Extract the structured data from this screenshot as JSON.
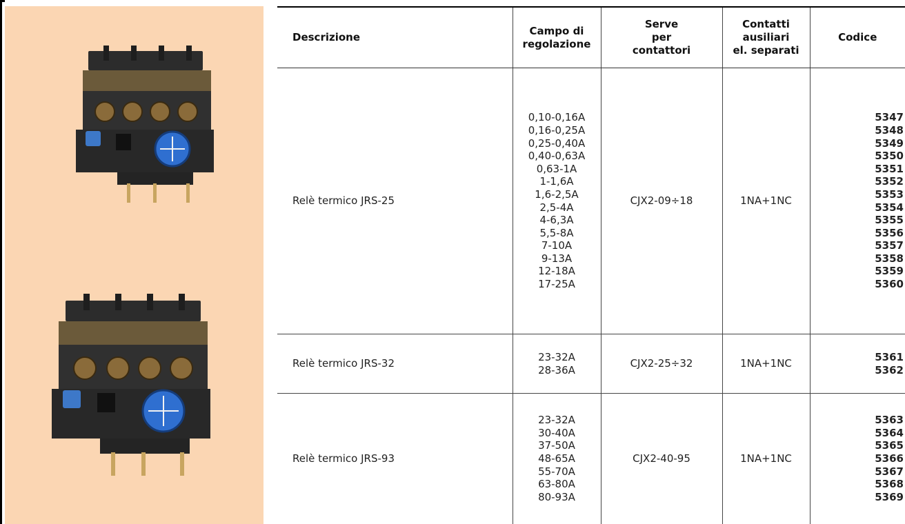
{
  "colors": {
    "panel": "#fbd6b3",
    "rule": "#000000",
    "relay_body": "#2b2b2b",
    "dial": "#2f6fd0"
  },
  "images": [
    {
      "name": "relay-jrs-25-photo",
      "icon": "thermal-relay-icon"
    },
    {
      "name": "relay-jrs-93-photo",
      "icon": "thermal-relay-icon"
    }
  ],
  "table": {
    "headers": {
      "descrizione": "Descrizione",
      "campo": "Campo di\nregolazione",
      "serve": "Serve\nper\ncontattori",
      "contatti": "Contatti\nausiliari\nel. separati",
      "codice": "Codice"
    },
    "rows": [
      {
        "descrizione": "Relè termico JRS-25",
        "campo": [
          "0,10-0,16A",
          "0,16-0,25A",
          "0,25-0,40A",
          "0,40-0,63A",
          "0,63-1A",
          "1-1,6A",
          "1,6-2,5A",
          "2,5-4A",
          "4-6,3A",
          "5,5-8A",
          "7-10A",
          "9-13A",
          "12-18A",
          "17-25A"
        ],
        "serve": "CJX2-09÷18",
        "contatti": "1NA+1NC",
        "codici": [
          "5347",
          "5348",
          "5349",
          "5350",
          "5351",
          "5352",
          "5353",
          "5354",
          "5355",
          "5356",
          "5357",
          "5358",
          "5359",
          "5360"
        ]
      },
      {
        "descrizione": "Relè termico JRS-32",
        "campo": [
          "23-32A",
          "28-36A"
        ],
        "serve": "CJX2-25÷32",
        "contatti": "1NA+1NC",
        "codici": [
          "5361",
          "5362"
        ]
      },
      {
        "descrizione": "Relè termico JRS-93",
        "campo": [
          "23-32A",
          "30-40A",
          "37-50A",
          "48-65A",
          "55-70A",
          "63-80A",
          "80-93A"
        ],
        "serve": "CJX2-40-95",
        "contatti": "1NA+1NC",
        "codici": [
          "5363",
          "5364",
          "5365",
          "5366",
          "5367",
          "5368",
          "5369"
        ]
      }
    ]
  }
}
